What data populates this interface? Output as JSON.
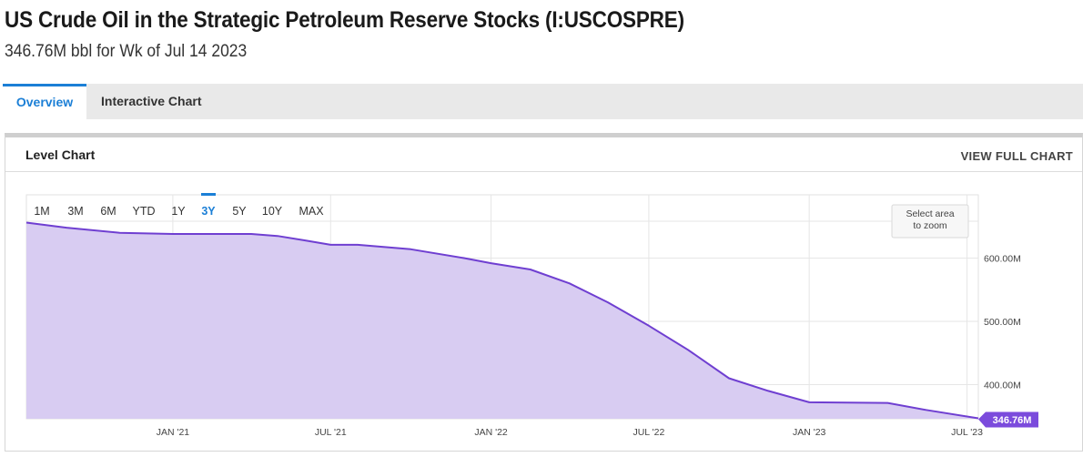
{
  "header": {
    "title": "US Crude Oil in the Strategic Petroleum Reserve Stocks (I:USCOSPRE)",
    "subtitle": "346.76M bbl for Wk of Jul 14 2023"
  },
  "tabs": [
    {
      "label": "Overview",
      "active": true
    },
    {
      "label": "Interactive Chart",
      "active": false
    }
  ],
  "card": {
    "title": "Level Chart",
    "view_full_label": "VIEW FULL CHART"
  },
  "range_buttons": [
    {
      "label": "1M",
      "active": false
    },
    {
      "label": "3M",
      "active": false
    },
    {
      "label": "6M",
      "active": false
    },
    {
      "label": "YTD",
      "active": false
    },
    {
      "label": "1Y",
      "active": false
    },
    {
      "label": "3Y",
      "active": true
    },
    {
      "label": "5Y",
      "active": false
    },
    {
      "label": "10Y",
      "active": false
    },
    {
      "label": "MAX",
      "active": false
    }
  ],
  "zoom_hint": [
    "Select area",
    "to zoom"
  ],
  "colors": {
    "accent": "#1b7fd6",
    "line": "#6f3fd1",
    "fill": "#d8ccf2",
    "badge": "#7b4bdc"
  },
  "chart_data": {
    "type": "area",
    "title": "",
    "xlabel": "",
    "ylabel": "",
    "unit": "M",
    "x_ticks": [
      "JAN '21",
      "JUL '21",
      "JAN '22",
      "JUL '22",
      "JAN '23",
      "JUL '23"
    ],
    "y_ticks": [
      {
        "value": 400,
        "label": "400.00M"
      },
      {
        "value": 500,
        "label": "500.00M"
      },
      {
        "value": 600,
        "label": "600.00M"
      }
    ],
    "xlim": [
      "2020-07-17",
      "2023-07-14"
    ],
    "ylim": [
      346,
      700
    ],
    "grid": true,
    "last_value_label": "346.76M",
    "points": [
      {
        "date": "2020-07-17",
        "value": 656.1
      },
      {
        "date": "2020-09-01",
        "value": 648.0
      },
      {
        "date": "2020-11-01",
        "value": 640.0
      },
      {
        "date": "2021-01-01",
        "value": 638.1
      },
      {
        "date": "2021-04-01",
        "value": 638.1
      },
      {
        "date": "2021-05-01",
        "value": 635.0
      },
      {
        "date": "2021-06-01",
        "value": 628.0
      },
      {
        "date": "2021-07-01",
        "value": 621.0
      },
      {
        "date": "2021-08-01",
        "value": 621.0
      },
      {
        "date": "2021-10-01",
        "value": 614.0
      },
      {
        "date": "2021-12-01",
        "value": 600.0
      },
      {
        "date": "2022-01-01",
        "value": 592.0
      },
      {
        "date": "2022-02-15",
        "value": 582.0
      },
      {
        "date": "2022-04-01",
        "value": 560.0
      },
      {
        "date": "2022-05-15",
        "value": 530.0
      },
      {
        "date": "2022-07-01",
        "value": 493.0
      },
      {
        "date": "2022-08-15",
        "value": 455.0
      },
      {
        "date": "2022-10-01",
        "value": 410.0
      },
      {
        "date": "2022-11-15",
        "value": 390.0
      },
      {
        "date": "2023-01-01",
        "value": 372.0
      },
      {
        "date": "2023-04-01",
        "value": 371.0
      },
      {
        "date": "2023-05-15",
        "value": 360.0
      },
      {
        "date": "2023-07-14",
        "value": 346.76
      }
    ]
  }
}
